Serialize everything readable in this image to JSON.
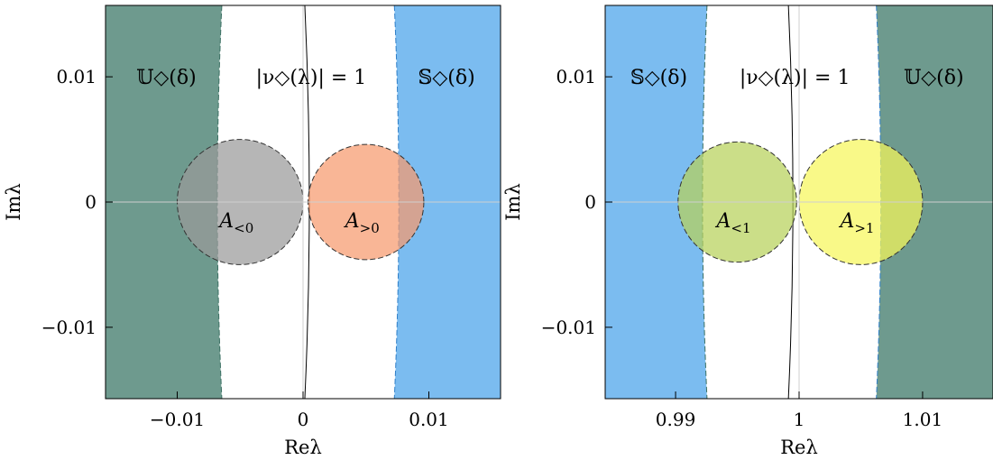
{
  "chart_data": [
    {
      "type": "region-plot",
      "xlabel": "Reλ",
      "ylabel": "Imλ",
      "xlim": [
        -0.0157,
        0.0157
      ],
      "ylim": [
        -0.0157,
        0.0157
      ],
      "xticks": [
        {
          "value": -0.01,
          "label": "−0.01"
        },
        {
          "value": 0,
          "label": "0"
        },
        {
          "value": 0.01,
          "label": "0.01"
        }
      ],
      "yticks": [
        {
          "value": 0.01,
          "label": "0.01"
        },
        {
          "value": 0,
          "label": "0"
        },
        {
          "value": -0.01,
          "label": "−0.01"
        }
      ],
      "regions": {
        "left": {
          "label": "𝕌◇(δ)",
          "color": "#6e9a8e",
          "boundary_x": -0.0066
        },
        "right": {
          "label": "𝕊◇(δ)",
          "color": "#7bbcf0",
          "boundary_x": 0.0074
        },
        "middle_label": "|ν◇(λ)| = 1",
        "unit_curve_x": 0.0005
      },
      "disks": [
        {
          "label": "A<0",
          "main": "A",
          "sub": "<0",
          "center": [
            -0.005,
            0
          ],
          "radius": 0.005,
          "color": "#9a9a9a",
          "dashed": true
        },
        {
          "label": "A>0",
          "main": "A",
          "sub": ">0",
          "center": [
            0.005,
            0
          ],
          "radius": 0.0046,
          "color": "#f79a6e",
          "dashed": true
        }
      ]
    },
    {
      "type": "region-plot",
      "xlabel": "Reλ",
      "ylabel": "Imλ",
      "xlim": [
        0.9843,
        1.0157
      ],
      "ylim": [
        -0.0157,
        0.0157
      ],
      "xticks": [
        {
          "value": 0.99,
          "label": "0.99"
        },
        {
          "value": 1,
          "label": "1"
        },
        {
          "value": 1.01,
          "label": "1.01"
        }
      ],
      "yticks": [
        {
          "value": 0.01,
          "label": "0.01"
        },
        {
          "value": 0,
          "label": "0"
        },
        {
          "value": -0.01,
          "label": "−0.01"
        }
      ],
      "regions": {
        "left": {
          "label": "𝕊◇(δ)",
          "color": "#7bbcf0",
          "boundary_x": 0.9924
        },
        "right": {
          "label": "𝕌◇(δ)",
          "color": "#6e9a8e",
          "boundary_x": 1.0064
        },
        "middle_label": "|ν◇(λ)| = 1",
        "unit_curve_x": 0.9995
      },
      "disks": [
        {
          "label": "A<1",
          "main": "A",
          "sub": "<1",
          "center": [
            0.995,
            0
          ],
          "radius": 0.0048,
          "color": "#b7d15a",
          "dashed": true
        },
        {
          "label": "A>1",
          "main": "A",
          "sub": ">1",
          "center": [
            1.005,
            0
          ],
          "radius": 0.005,
          "color": "#f7f75a",
          "dashed": true
        }
      ]
    }
  ]
}
